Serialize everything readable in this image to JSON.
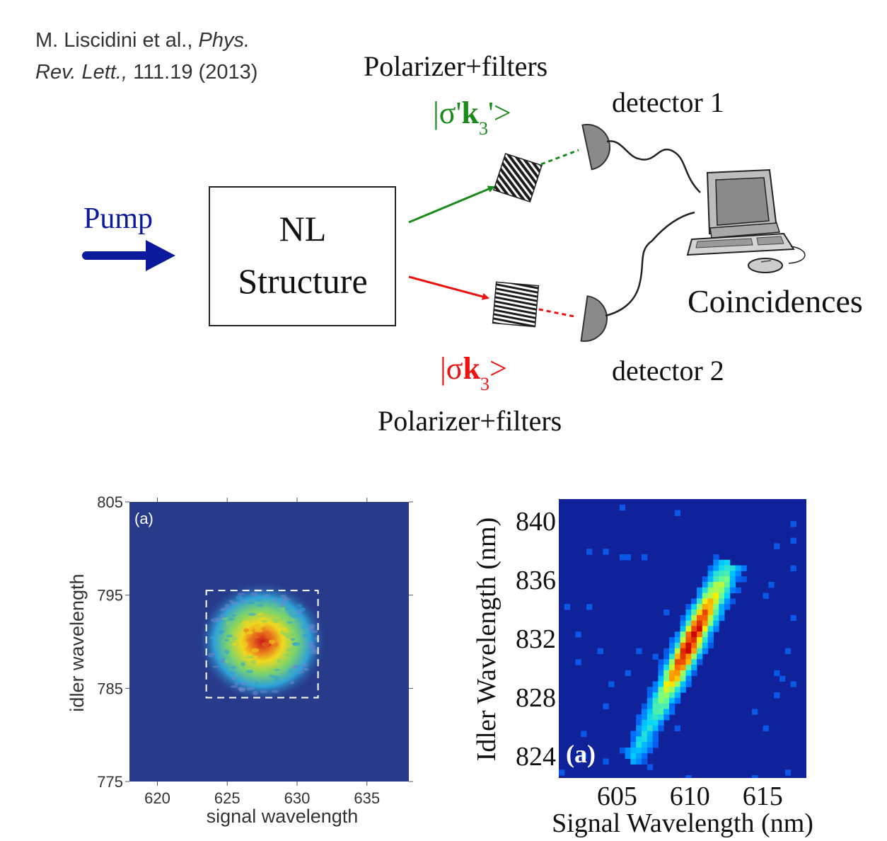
{
  "citation": {
    "line1_prefix": "M. Liscidini et al., ",
    "line1_italic": "Phys.",
    "line2_italic": "Rev. Lett.,",
    "line2_rest": " 111.19 (2013)"
  },
  "setup": {
    "pump_label": "Pump",
    "box_line1": "NL",
    "box_line2": "Structure",
    "polarizer_top": "Polarizer+filters",
    "polarizer_bottom": "Polarizer+filters",
    "state_top": {
      "open": "|σ'",
      "k": "k",
      "sub": "3",
      "close": "'>"
    },
    "state_bottom": {
      "open": "|σ",
      "k": "k",
      "sub": "3",
      "close": ">"
    },
    "detector1": "detector 1",
    "detector2": "detector 2",
    "coincidences": "Coincidences",
    "colors": {
      "pump": "#0a1a9a",
      "top_beam": "#1a8a1a",
      "bottom_beam": "#ee1111",
      "detector": "#8a8a8a"
    }
  },
  "plots": [
    {
      "panel_label": "(a)",
      "xlabel": "signal wavelength",
      "ylabel": "idler wavelength",
      "xticks": [
        "620",
        "625",
        "630",
        "635"
      ],
      "yticks": [
        "775",
        "785",
        "795",
        "805"
      ],
      "xlim": [
        618,
        638
      ],
      "ylim": [
        775,
        805
      ],
      "blob_center": [
        627.5,
        790
      ],
      "dashed_box": {
        "x": [
          623.5,
          631.5
        ],
        "y": [
          784,
          795.5
        ]
      },
      "background": "#283a8a"
    },
    {
      "panel_label": "(a)",
      "xlabel": "Signal Wavelength (nm)",
      "ylabel": "Idler Wavelength (nm)",
      "xticks": [
        "605",
        "610",
        "615"
      ],
      "yticks": [
        "824",
        "828",
        "832",
        "836",
        "840"
      ],
      "xlim": [
        601,
        618
      ],
      "ylim": [
        822.5,
        841.5
      ],
      "ridge_from": [
        606.2,
        824
      ],
      "ridge_to": [
        612.6,
        836.8
      ],
      "peak": [
        610,
        831.8
      ],
      "background": "#10229a"
    }
  ]
}
